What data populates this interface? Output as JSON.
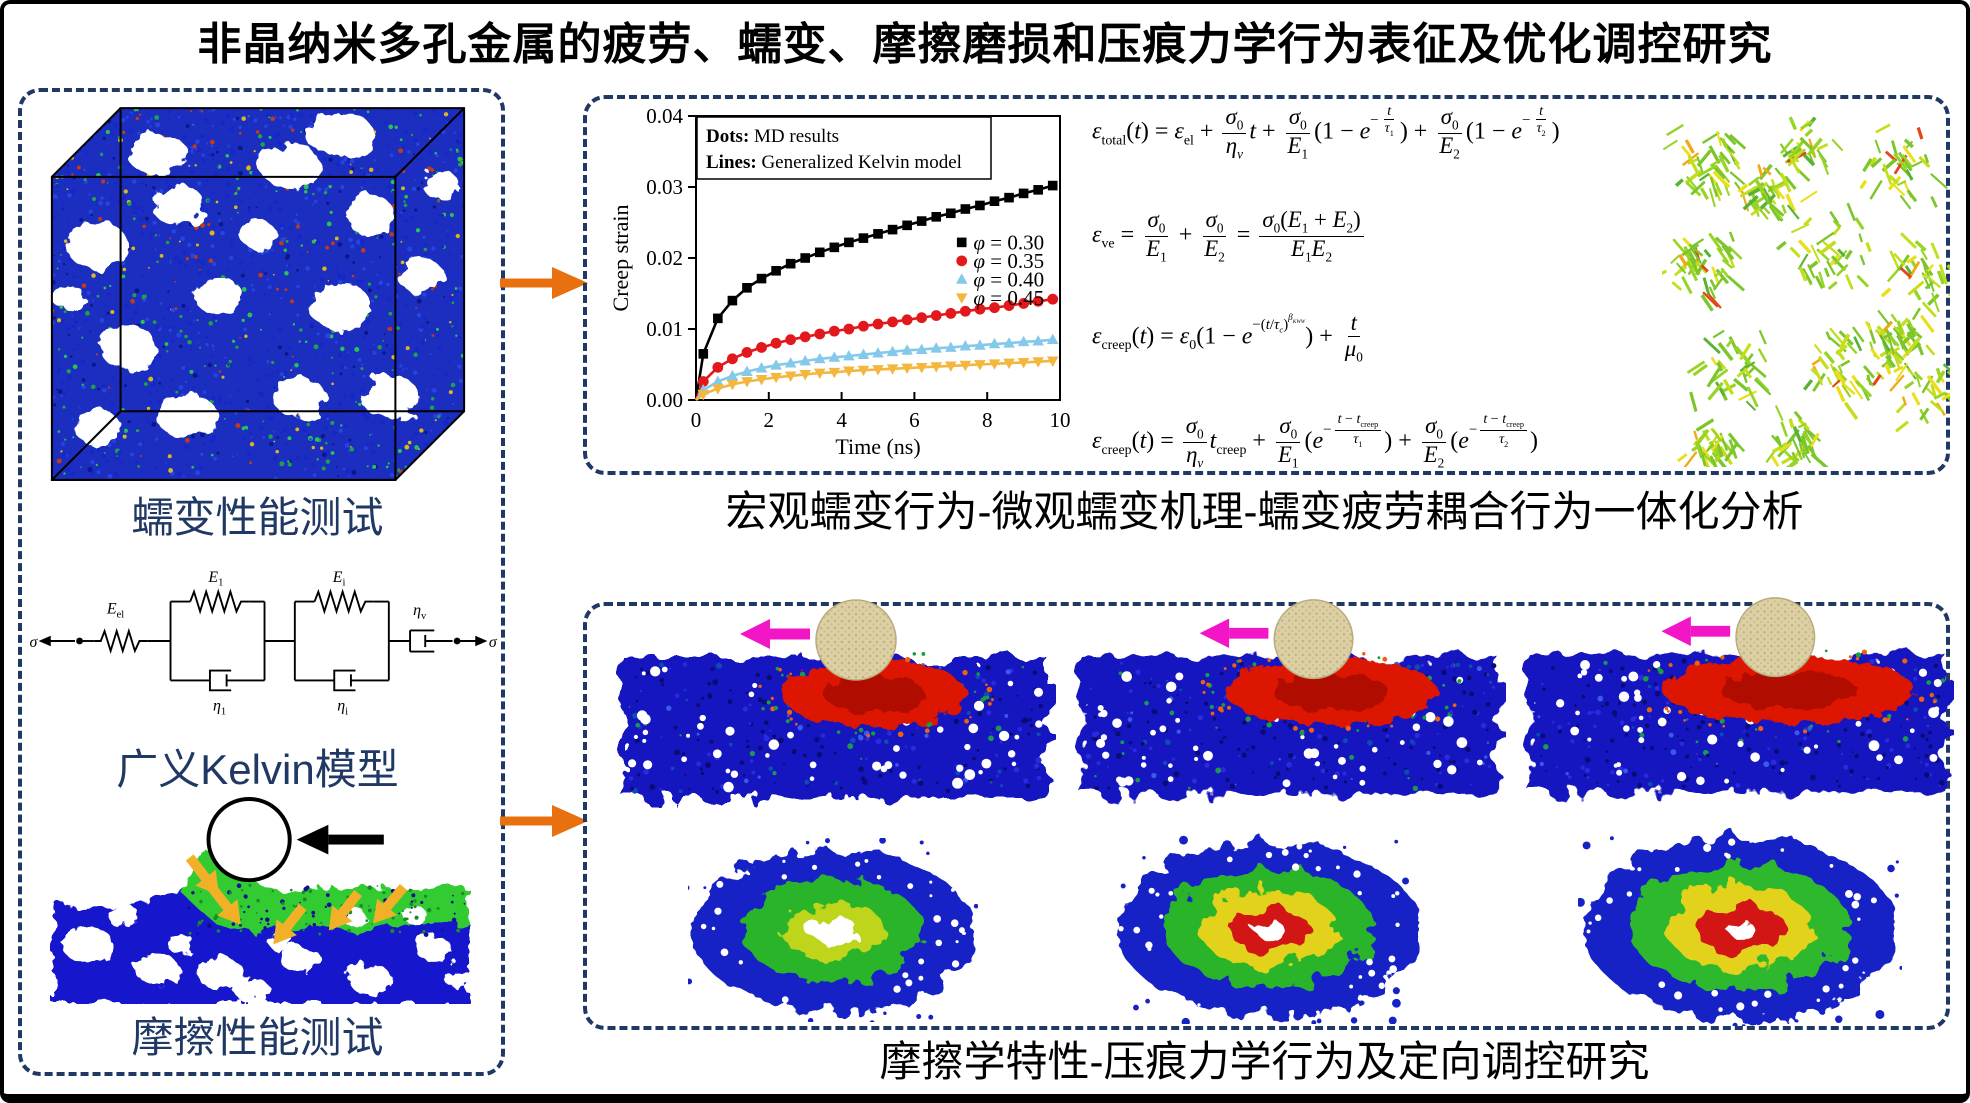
{
  "title": "非晶纳米多孔金属的疲劳、蠕变、摩擦磨损和压痕力学行为表征及优化调控研究",
  "colors": {
    "panel_border": "#1F3864",
    "side_label_text": "#1F3864",
    "flow_arrow": "#E8700F",
    "sliding_arrow": "#F316C6",
    "shear_arrow": "#F2B028",
    "indenter_sphere": "#DCD0A4",
    "hot_contact": "#DC1602",
    "porous_blue": "#1717C4"
  },
  "left_panel": {
    "creep_label": "蠕变性能测试",
    "friction_label": "摩擦性能测试",
    "kelvin": {
      "label": "广义Kelvin模型",
      "sigma": "σ",
      "e_el": [
        "E",
        "el"
      ],
      "e_1": [
        "E",
        "1"
      ],
      "e_i": [
        "E",
        "i"
      ],
      "eta_1": [
        "η",
        "1"
      ],
      "eta_i": [
        "η",
        "i"
      ],
      "eta_v": [
        "η",
        "v"
      ]
    }
  },
  "creep_section": {
    "caption": "宏观蠕变行为-微观蠕变机理-蠕变疲劳耦合行为一体化分析",
    "equations": [
      [
        {
          "i": "ε"
        },
        {
          "s": "total"
        },
        "(",
        {
          "i": "t"
        },
        ") = ",
        {
          "i": "ε"
        },
        {
          "s": "el"
        },
        " + ",
        {
          "f": [
            [
              {
                "i": "σ"
              },
              {
                "s": "0"
              }
            ],
            [
              {
                "i": "η"
              },
              {
                "si": "v"
              }
            ]
          ]
        },
        {
          "i": "t"
        },
        " + ",
        {
          "f": [
            [
              {
                "i": "σ"
              },
              {
                "s": "0"
              }
            ],
            [
              {
                "i": "E"
              },
              {
                "s": "1"
              }
            ]
          ]
        },
        "(1 − ",
        {
          "i": "e"
        },
        {
          "e": [
            "−",
            {
              "f": [
                [
                  {
                    "i": "t"
                  }
                ],
                [
                  {
                    "i": "τ"
                  },
                  {
                    "s": "1"
                  }
                ]
              ]
            }
          ]
        },
        ") + ",
        {
          "f": [
            [
              {
                "i": "σ"
              },
              {
                "s": "0"
              }
            ],
            [
              {
                "i": "E"
              },
              {
                "s": "2"
              }
            ]
          ]
        },
        "(1 − ",
        {
          "i": "e"
        },
        {
          "e": [
            "−",
            {
              "f": [
                [
                  {
                    "i": "t"
                  }
                ],
                [
                  {
                    "i": "τ"
                  },
                  {
                    "s": "2"
                  }
                ]
              ]
            }
          ]
        },
        ")"
      ],
      [
        {
          "i": "ε"
        },
        {
          "s": "ve"
        },
        " = ",
        {
          "f": [
            [
              {
                "i": "σ"
              },
              {
                "s": "0"
              }
            ],
            [
              {
                "i": "E"
              },
              {
                "s": "1"
              }
            ]
          ]
        },
        " + ",
        {
          "f": [
            [
              {
                "i": "σ"
              },
              {
                "s": "0"
              }
            ],
            [
              {
                "i": "E"
              },
              {
                "s": "2"
              }
            ]
          ]
        },
        " = ",
        {
          "f": [
            [
              {
                "i": "σ"
              },
              {
                "s": "0"
              },
              "(",
              {
                "i": "E"
              },
              {
                "s": "1"
              },
              " + ",
              {
                "i": "E"
              },
              {
                "s": "2"
              },
              ")"
            ],
            [
              {
                "i": "E"
              },
              {
                "s": "1"
              },
              {
                "i": "E"
              },
              {
                "s": "2"
              }
            ]
          ]
        }
      ],
      [
        {
          "i": "ε"
        },
        {
          "s": "creep"
        },
        "(",
        {
          "i": "t"
        },
        ") = ",
        {
          "i": "ε"
        },
        {
          "s": "0"
        },
        "(1 − ",
        {
          "i": "e"
        },
        {
          "e": [
            "−(",
            {
              "i": "t"
            },
            "/",
            {
              "i": "τ"
            },
            {
              "si": "c"
            },
            ")",
            {
              "e": [
                {
                  "i": "β"
                },
                {
                  "si": "KWW"
                }
              ]
            }
          ]
        },
        ") + ",
        {
          "f": [
            [
              {
                "i": "t"
              }
            ],
            [
              {
                "i": "μ"
              },
              {
                "s": "0"
              }
            ]
          ]
        }
      ],
      [
        {
          "i": "ε"
        },
        {
          "s": "creep"
        },
        "(",
        {
          "i": "t"
        },
        ") = ",
        {
          "f": [
            [
              {
                "i": "σ"
              },
              {
                "s": "0"
              }
            ],
            [
              {
                "i": "η"
              },
              {
                "si": "v"
              }
            ]
          ]
        },
        {
          "i": "t"
        },
        {
          "s": "creep"
        },
        " + ",
        {
          "f": [
            [
              {
                "i": "σ"
              },
              {
                "s": "0"
              }
            ],
            [
              {
                "i": "E"
              },
              {
                "s": "1"
              }
            ]
          ]
        },
        "(",
        {
          "i": "e"
        },
        {
          "e": [
            "−",
            {
              "f": [
                [
                  {
                    "i": "t"
                  },
                  " − ",
                  {
                    "i": "t"
                  },
                  {
                    "s": "creep"
                  }
                ],
                [
                  {
                    "i": "τ"
                  },
                  {
                    "s": "1"
                  }
                ]
              ]
            }
          ]
        },
        ") + ",
        {
          "f": [
            [
              {
                "i": "σ"
              },
              {
                "s": "0"
              }
            ],
            [
              {
                "i": "E"
              },
              {
                "s": "2"
              }
            ]
          ]
        },
        "(",
        {
          "i": "e"
        },
        {
          "e": [
            "−",
            {
              "f": [
                [
                  {
                    "i": "t"
                  },
                  " − ",
                  {
                    "i": "t"
                  },
                  {
                    "s": "creep"
                  }
                ],
                [
                  {
                    "i": "τ"
                  },
                  {
                    "s": "2"
                  }
                ]
              ]
            }
          ]
        },
        ")"
      ]
    ]
  },
  "tribology_section": {
    "caption": "摩擦学特性-压痕力学行为及定向调控研究"
  },
  "chart_data": {
    "type": "line",
    "title": "",
    "xlabel": "Time (ns)",
    "ylabel": "Creep strain",
    "xlim": [
      0,
      10
    ],
    "ylim": [
      0,
      0.04
    ],
    "xticks": [
      0,
      2,
      4,
      6,
      8,
      10
    ],
    "yticks": [
      0.0,
      0.01,
      0.02,
      0.03,
      0.04
    ],
    "grid": false,
    "annotations": [
      {
        "bold": "Dots:",
        "text": " MD results"
      },
      {
        "bold": "Lines:",
        "text": " Generalized Kelvin model"
      }
    ],
    "legend_position": "right-inside",
    "x": [
      0.2,
      0.6,
      1,
      1.4,
      1.8,
      2.2,
      2.6,
      3,
      3.4,
      3.8,
      4.2,
      4.6,
      5,
      5.4,
      5.8,
      6.2,
      6.6,
      7,
      7.4,
      7.8,
      8.2,
      8.6,
      9,
      9.4,
      9.8
    ],
    "series": [
      {
        "name": "φ = 0.30",
        "sym": "φ",
        "val": " = 0.30",
        "marker": "square",
        "color": "#000000",
        "values": [
          0.0065,
          0.0115,
          0.014,
          0.0158,
          0.0171,
          0.0182,
          0.0192,
          0.02,
          0.0208,
          0.0215,
          0.0222,
          0.0228,
          0.0234,
          0.024,
          0.0246,
          0.0252,
          0.0258,
          0.0263,
          0.0269,
          0.0274,
          0.028,
          0.0285,
          0.0291,
          0.0296,
          0.0302
        ]
      },
      {
        "name": "φ = 0.35",
        "sym": "φ",
        "val": " = 0.35",
        "marker": "circle",
        "color": "#E2191C",
        "values": [
          0.0026,
          0.0046,
          0.0058,
          0.0067,
          0.0074,
          0.008,
          0.0085,
          0.0089,
          0.0093,
          0.0097,
          0.01,
          0.0104,
          0.0107,
          0.011,
          0.0113,
          0.0116,
          0.0119,
          0.0122,
          0.0125,
          0.0128,
          0.013,
          0.0133,
          0.0136,
          0.0139,
          0.0142
        ]
      },
      {
        "name": "φ = 0.40",
        "sym": "φ",
        "val": " = 0.40",
        "marker": "triangle",
        "color": "#85C9EA",
        "values": [
          0.0014,
          0.0026,
          0.0034,
          0.004,
          0.0045,
          0.0049,
          0.0052,
          0.0055,
          0.0058,
          0.006,
          0.0062,
          0.0064,
          0.0066,
          0.0068,
          0.007,
          0.0071,
          0.0073,
          0.0074,
          0.0076,
          0.0077,
          0.0079,
          0.008,
          0.0082,
          0.0083,
          0.0085
        ]
      },
      {
        "name": "φ = 0.45",
        "sym": "φ",
        "val": " = 0.45",
        "marker": "triangle-down",
        "color": "#F3B63F",
        "values": [
          0.0008,
          0.0016,
          0.0022,
          0.0026,
          0.0029,
          0.0032,
          0.0034,
          0.0036,
          0.0038,
          0.0039,
          0.0041,
          0.0042,
          0.0043,
          0.0044,
          0.0045,
          0.0046,
          0.0047,
          0.0048,
          0.0049,
          0.005,
          0.0051,
          0.0052,
          0.0053,
          0.0054,
          0.0055
        ]
      }
    ]
  }
}
